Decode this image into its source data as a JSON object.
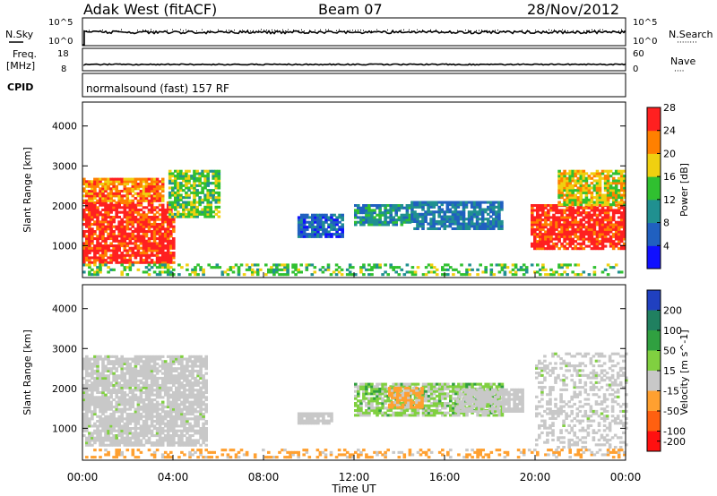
{
  "header": {
    "radar": "Adak West (fitACF)",
    "beam": "Beam 07",
    "date": "28/Nov/2012"
  },
  "top_panels": {
    "nsky_label": "N.Sky",
    "nsearch_label": "N.Search",
    "nsearch_dots": "········",
    "nsky_ticks": [
      "10^5",
      "10^0"
    ],
    "nsearch_ticks": [
      "10^5",
      "10^0"
    ],
    "freq_label_1": "Freq.",
    "freq_label_2": "[MHz]",
    "freq_ticks": [
      "18",
      "8"
    ],
    "nave_label": "Nave",
    "nave_dots": "····",
    "nave_ticks": [
      "60",
      "0"
    ],
    "cpid_label": "CPID",
    "mode_text": "normalsound (fast) 157 RF"
  },
  "chart_data": [
    {
      "type": "heatmap",
      "title": "",
      "xlabel": "",
      "ylabel": "Slant Range [km]",
      "colorbar_label": "Power [dB]",
      "x_ticks": [
        "00:00",
        "04:00",
        "08:00",
        "12:00",
        "16:00",
        "20:00",
        "00:00"
      ],
      "y_ticks": [
        1000,
        2000,
        3000,
        4000
      ],
      "ylim": [
        200,
        4600
      ],
      "xlim_hours": [
        0,
        24
      ],
      "colorbar_ticks": [
        4,
        8,
        12,
        16,
        20,
        24,
        28
      ],
      "colorbar_colors": [
        "#1010ff",
        "#2060c0",
        "#209090",
        "#30c030",
        "#f0d010",
        "#ff8000",
        "#ff2020"
      ],
      "regions": [
        {
          "t0": 0.0,
          "t1": 4.0,
          "r0": 550,
          "r1": 2100,
          "value": 28
        },
        {
          "t0": 0.0,
          "t1": 3.5,
          "r0": 2100,
          "r1": 2700,
          "value": 24
        },
        {
          "t0": 3.8,
          "t1": 6.0,
          "r0": 1700,
          "r1": 2900,
          "value": 16
        },
        {
          "t0": 9.5,
          "t1": 11.5,
          "r0": 1200,
          "r1": 1800,
          "value": 8
        },
        {
          "t0": 12.0,
          "t1": 14.5,
          "r0": 1500,
          "r1": 2000,
          "value": 12
        },
        {
          "t0": 14.5,
          "t1": 18.5,
          "r0": 1400,
          "r1": 2100,
          "value": 10
        },
        {
          "t0": 19.8,
          "t1": 24.0,
          "r0": 900,
          "r1": 2000,
          "value": 28
        },
        {
          "t0": 21.0,
          "t1": 24.0,
          "r0": 2000,
          "r1": 2900,
          "value": 20
        },
        {
          "t0": 0.0,
          "t1": 24.0,
          "r0": 250,
          "r1": 500,
          "value": 16
        }
      ]
    },
    {
      "type": "heatmap",
      "title": "",
      "xlabel": "Time UT",
      "ylabel": "Slant Range [km]",
      "colorbar_label": "Velocity [m s^-1]",
      "x_ticks": [
        "00:00",
        "04:00",
        "08:00",
        "12:00",
        "16:00",
        "20:00",
        "00:00"
      ],
      "y_ticks": [
        1000,
        2000,
        3000,
        4000
      ],
      "ylim": [
        200,
        4600
      ],
      "xlim_hours": [
        0,
        24
      ],
      "colorbar_ticks": [
        200,
        100,
        50,
        15,
        -15,
        -50,
        -100,
        -200
      ],
      "colorbar_colors": [
        "#2040c0",
        "#208060",
        "#30a040",
        "#80d040",
        "#c8c8c8",
        "#ffa030",
        "#ff6010",
        "#ff1010"
      ],
      "regions": [
        {
          "t0": 0.0,
          "t1": 5.5,
          "r0": 550,
          "r1": 2800,
          "value": 0
        },
        {
          "t0": 9.5,
          "t1": 11.0,
          "r0": 1100,
          "r1": 1400,
          "value": 0
        },
        {
          "t0": 12.0,
          "t1": 18.5,
          "r0": 1300,
          "r1": 2100,
          "value": 20
        },
        {
          "t0": 13.5,
          "t1": 15.0,
          "r0": 1500,
          "r1": 2000,
          "value": -40
        },
        {
          "t0": 16.5,
          "t1": 19.5,
          "r0": 1400,
          "r1": 2000,
          "value": 0
        },
        {
          "t0": 20.0,
          "t1": 24.0,
          "r0": 500,
          "r1": 2900,
          "value": 0
        },
        {
          "t0": 0.0,
          "t1": 24.0,
          "r0": 250,
          "r1": 450,
          "value": -40
        }
      ]
    }
  ]
}
